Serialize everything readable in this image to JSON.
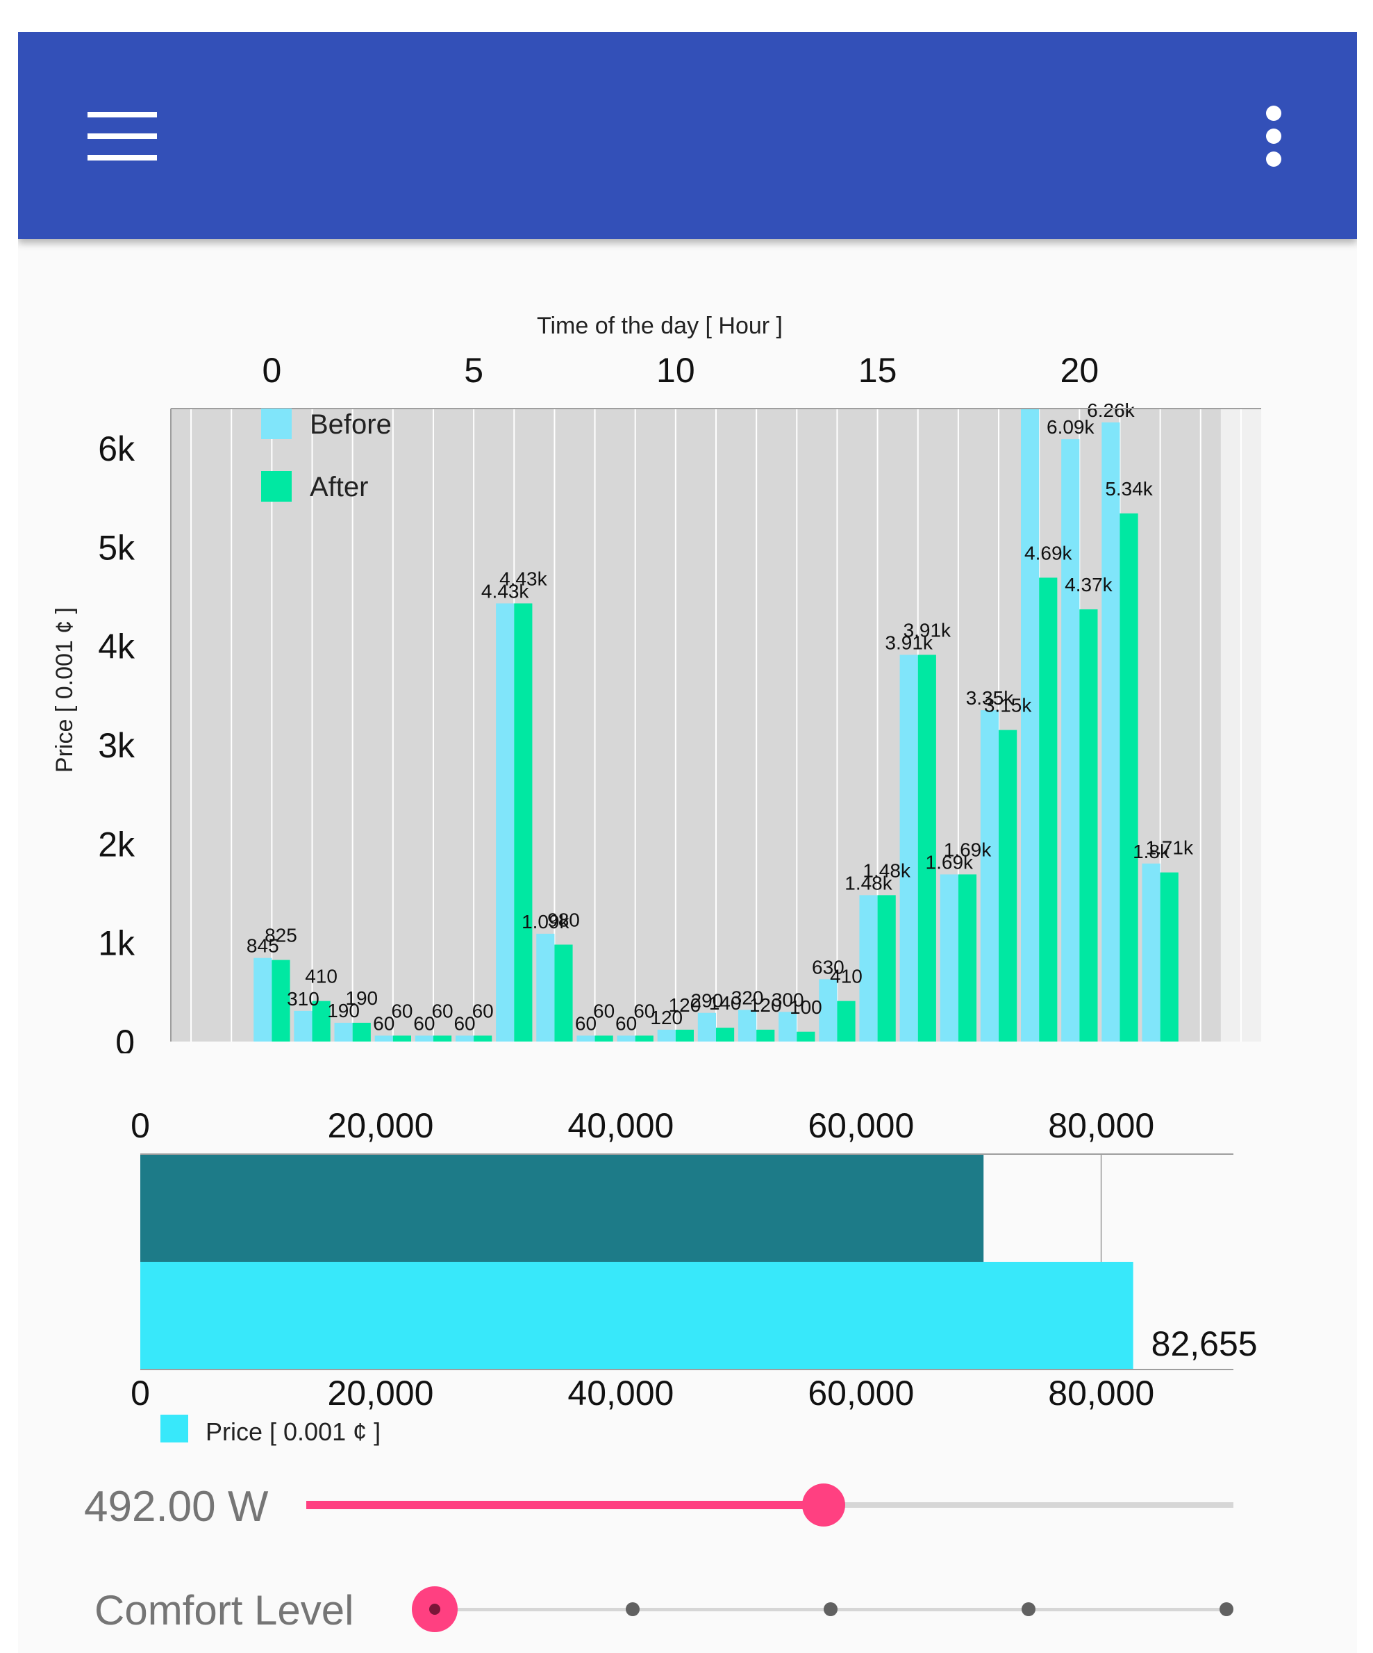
{
  "app_bar": {
    "color": "#3350b8",
    "menu_icon": "hamburger-menu-icon",
    "overflow_icon": "more-vert-icon"
  },
  "chart_data": [
    {
      "type": "bar",
      "title": "Time of the day [ Hour ]",
      "xlabel": "Time of the day [ Hour ]",
      "ylabel": "Price [ 0.001 ¢ ]",
      "x": [
        0,
        1,
        2,
        3,
        4,
        5,
        6,
        7,
        8,
        9,
        10,
        11,
        12,
        13,
        14,
        15,
        16,
        17,
        18,
        19,
        20,
        21,
        22,
        23
      ],
      "x_ticks": [
        0,
        5,
        10,
        15,
        20
      ],
      "x_tick_labels": [
        "0",
        "5",
        "10",
        "15",
        "20"
      ],
      "y_ticks": [
        0,
        1000,
        2000,
        3000,
        4000,
        5000,
        6000
      ],
      "y_tick_labels": [
        "0",
        "1k",
        "2k",
        "3k",
        "4k",
        "5k",
        "6k"
      ],
      "ylim": [
        0,
        6400
      ],
      "xlim": [
        -2.5,
        24.5
      ],
      "grid": true,
      "legend_position": "top-left",
      "series": [
        {
          "name": "Before",
          "color": "#80e5fa",
          "values": [
            845,
            310,
            190,
            60,
            60,
            60,
            4430,
            1090,
            60,
            60,
            120,
            290,
            320,
            300,
            630,
            1480,
            3910,
            1690,
            3350,
            6400,
            6090,
            6260,
            1800,
            null
          ],
          "labels": [
            "845",
            "310",
            "190",
            "60",
            "60",
            "60",
            "4.43k",
            "1.09k",
            "60",
            "60",
            "120",
            "290",
            "320",
            "300",
            "630",
            "1.48k",
            "3.91k",
            "1.69k",
            "3.35k",
            "",
            "6.09k",
            "6.26k",
            "1.8k",
            ""
          ]
        },
        {
          "name": "After",
          "color": "#00e8a2",
          "values": [
            825,
            410,
            190,
            60,
            60,
            60,
            4430,
            980,
            60,
            60,
            120,
            140,
            120,
            100,
            410,
            1480,
            3910,
            1690,
            3150,
            4690,
            4370,
            5340,
            1710,
            null
          ],
          "labels": [
            "825",
            "410",
            "190",
            "60",
            "60",
            "60",
            "4.43k",
            "980",
            "60",
            "60",
            "120",
            "140",
            "120",
            "100",
            "410",
            "1.48k",
            "3.91k",
            "1.69k",
            "3.15k",
            "4.69k",
            "4.37k",
            "5.34k",
            "1.71k",
            ""
          ]
        }
      ]
    },
    {
      "type": "bar",
      "orientation": "horizontal",
      "xlim": [
        0,
        91000
      ],
      "x_ticks": [
        0,
        20000,
        40000,
        60000,
        80000
      ],
      "x_tick_labels": [
        "0",
        "20,000",
        "40,000",
        "60,000",
        "80,000"
      ],
      "grid": true,
      "legend_position": "bottom-left",
      "series": [
        {
          "name": "",
          "color": "#1d7b88",
          "values": [
            70200
          ],
          "label": ""
        },
        {
          "name": "Price [ 0.001 ¢ ]",
          "color": "#38e8fa",
          "values": [
            82655
          ],
          "label": "82,655"
        }
      ]
    }
  ],
  "controls": {
    "power_value": "492.00 W",
    "power_fraction": 0.558,
    "comfort_label": "Comfort Level",
    "comfort_levels": 5,
    "comfort_selected": 0,
    "accent_color": "#ff4081"
  }
}
